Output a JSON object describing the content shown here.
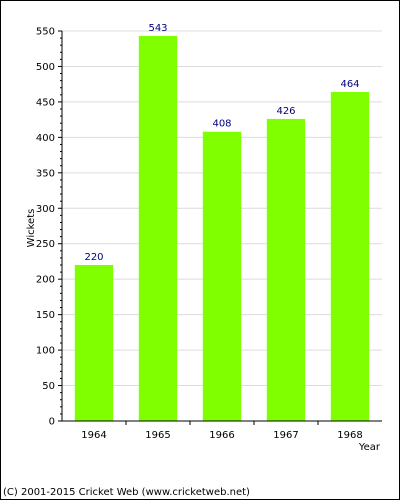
{
  "chart_data": {
    "type": "bar",
    "categories": [
      "1964",
      "1965",
      "1966",
      "1967",
      "1968"
    ],
    "values": [
      220,
      543,
      408,
      426,
      464
    ],
    "data_labels": [
      "220",
      "543",
      "408",
      "426",
      "464"
    ],
    "title": "",
    "xlabel": "Year",
    "ylabel": "Wickets",
    "ylim": [
      0,
      550
    ],
    "yticks": [
      "0",
      "50",
      "100",
      "150",
      "200",
      "250",
      "300",
      "350",
      "400",
      "450",
      "500",
      "550"
    ],
    "grid": true,
    "legend": "none"
  },
  "colors": {
    "bar": "#80ff00",
    "grid": "#dcdcdc",
    "axis": "#000000",
    "data_label": "#000080"
  },
  "footer": {
    "copyright": "(C) 2001-2015 Cricket Web (www.cricketweb.net)"
  }
}
